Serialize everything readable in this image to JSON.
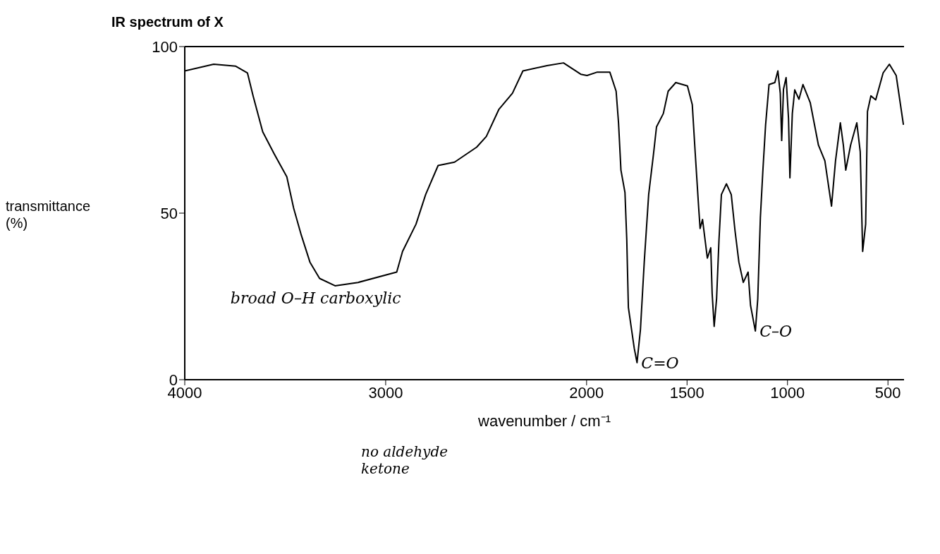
{
  "chart_data": {
    "type": "line",
    "title": "IR spectrum of X",
    "xlabel": "wavenumber / cm⁻¹",
    "ylabel": "transmittance (%)",
    "xlim": [
      4000,
      420
    ],
    "xticks": [
      4000,
      3000,
      2000,
      1500,
      1000,
      500
    ],
    "ylim": [
      0,
      100
    ],
    "yticks": [
      0,
      50,
      100
    ],
    "grid": false,
    "legend": false,
    "marker": "none",
    "line_style": "solid",
    "annotations": [
      {
        "text": "broad O–H carboxylic",
        "x": 2945,
        "y": 32.3
      },
      {
        "text": "C=O",
        "x": 1749,
        "y": 5.1
      },
      {
        "text": "C–O",
        "x": 1160,
        "y": 14.6
      },
      "no aldehyde ketone"
    ],
    "series": [
      {
        "color": "#000000",
        "x": [
          4000,
          3856,
          3746,
          3688,
          3660,
          3612,
          3554,
          3492,
          3458,
          3420,
          3377,
          3329,
          3252,
          3137,
          2945,
          2916,
          2849,
          2801,
          2739,
          2657,
          2547,
          2499,
          2437,
          2369,
          2317,
          2197,
          2115,
          2029,
          1998,
          1949,
          1884,
          1853,
          1841,
          1829,
          1809,
          1800,
          1792,
          1763,
          1749,
          1732,
          1713,
          1691,
          1667,
          1652,
          1618,
          1594,
          1556,
          1498,
          1474,
          1459,
          1442,
          1435,
          1423,
          1399,
          1382,
          1375,
          1365,
          1353,
          1341,
          1329,
          1304,
          1280,
          1261,
          1242,
          1220,
          1196,
          1184,
          1160,
          1148,
          1135,
          1123,
          1109,
          1092,
          1063,
          1048,
          1036,
          1029,
          1020,
          1007,
          995,
          988,
          976,
          964,
          943,
          923,
          887,
          846,
          814,
          781,
          761,
          737,
          722,
          710,
          686,
          655,
          638,
          626,
          611,
          602,
          585,
          561,
          524,
          493,
          459,
          423
        ],
        "values": [
          92.7,
          94.7,
          94.1,
          92.1,
          85.2,
          74.4,
          67.7,
          60.9,
          51.5,
          43.4,
          35.3,
          30.4,
          28.2,
          29.2,
          32.3,
          38.5,
          46.7,
          55.6,
          64.3,
          65.3,
          69.8,
          73.0,
          81.1,
          86.0,
          92.7,
          94.3,
          95.1,
          91.7,
          91.3,
          92.3,
          92.3,
          86.6,
          77.1,
          62.9,
          56.2,
          42.0,
          21.7,
          9.5,
          5.1,
          15.0,
          35.3,
          55.6,
          67.7,
          75.9,
          79.9,
          86.6,
          89.2,
          88.2,
          82.6,
          67.7,
          51.5,
          45.4,
          48.1,
          36.5,
          39.6,
          25.8,
          16.0,
          24.3,
          42.0,
          55.6,
          58.8,
          55.6,
          44.6,
          35.3,
          29.2,
          32.3,
          22.3,
          14.6,
          24.3,
          48.7,
          62.3,
          76.5,
          88.6,
          89.2,
          92.7,
          86.0,
          71.8,
          87.2,
          90.7,
          78.5,
          60.6,
          79.9,
          87.0,
          84.2,
          88.6,
          83.2,
          70.4,
          65.7,
          52.1,
          65.7,
          77.1,
          70.4,
          62.9,
          70.4,
          77.1,
          68.4,
          38.5,
          46.7,
          80.5,
          85.2,
          84.0,
          92.1,
          94.7,
          91.3,
          76.5
        ]
      }
    ]
  }
}
